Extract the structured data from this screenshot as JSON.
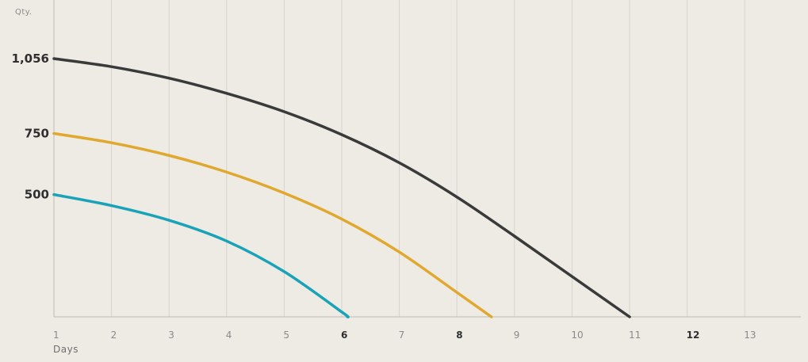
{
  "chart_data": {
    "type": "line",
    "ylabel": "Qty.",
    "xlabel": "Days",
    "x_ticks": [
      1,
      2,
      3,
      4,
      5,
      6,
      7,
      8,
      9,
      10,
      11,
      12,
      13
    ],
    "x_ticks_emphasized": [
      6,
      8,
      12
    ],
    "xlim": [
      1,
      14
    ],
    "y_ticks": [
      {
        "value": 1056,
        "label": "1,056"
      },
      {
        "value": 750,
        "label": "750"
      },
      {
        "value": 500,
        "label": "500"
      }
    ],
    "ylim": [
      0,
      1056
    ],
    "grid": "vertical",
    "series": [
      {
        "color": "#3a3a3a",
        "points": [
          [
            1,
            1056
          ],
          [
            2,
            1023
          ],
          [
            3,
            976
          ],
          [
            4,
            914
          ],
          [
            5,
            839
          ],
          [
            6,
            745
          ],
          [
            7,
            630
          ],
          [
            8,
            490
          ],
          [
            9,
            330
          ],
          [
            10,
            165
          ],
          [
            11,
            0
          ]
        ]
      },
      {
        "color": "#e0a82e",
        "points": [
          [
            1,
            750
          ],
          [
            2,
            712
          ],
          [
            3,
            660
          ],
          [
            4,
            592
          ],
          [
            5,
            506
          ],
          [
            6,
            400
          ],
          [
            7,
            265
          ],
          [
            8,
            100
          ],
          [
            8.6,
            0
          ]
        ]
      },
      {
        "color": "#1aa3b8",
        "points": [
          [
            1,
            500
          ],
          [
            2,
            455
          ],
          [
            3,
            395
          ],
          [
            4,
            310
          ],
          [
            5,
            185
          ],
          [
            6,
            20
          ],
          [
            6.1,
            0
          ]
        ]
      }
    ]
  }
}
